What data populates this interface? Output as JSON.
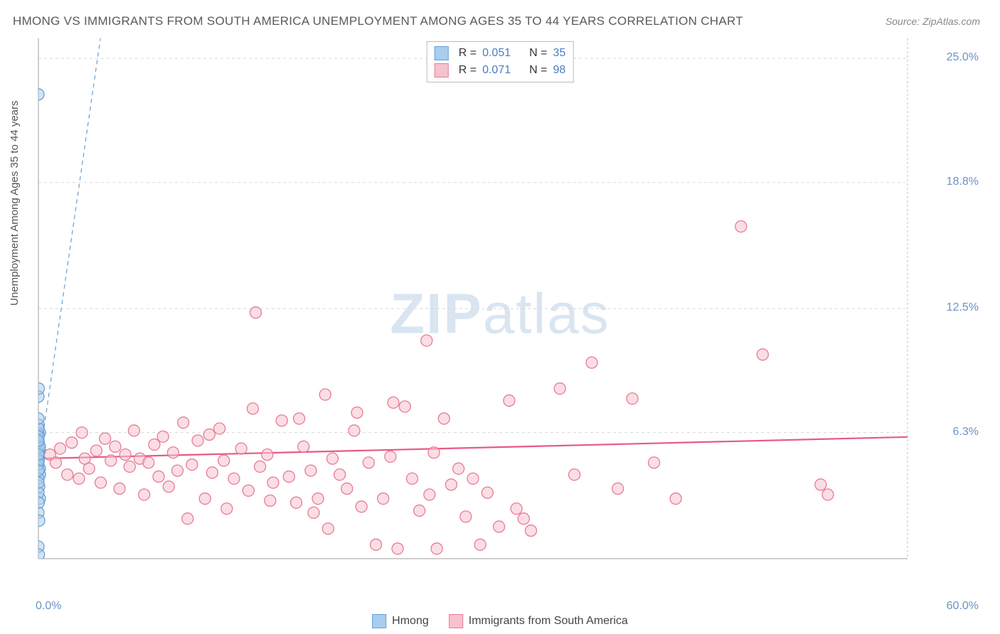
{
  "title": "HMONG VS IMMIGRANTS FROM SOUTH AMERICA UNEMPLOYMENT AMONG AGES 35 TO 44 YEARS CORRELATION CHART",
  "source": "Source: ZipAtlas.com",
  "ylabel": "Unemployment Among Ages 35 to 44 years",
  "watermark_zip": "ZIP",
  "watermark_atlas": "atlas",
  "xlim": [
    0,
    60
  ],
  "ylim": [
    0,
    26
  ],
  "x_min_label": "0.0%",
  "x_max_label": "60.0%",
  "y_ticks": [
    {
      "value": 6.3,
      "label": "6.3%"
    },
    {
      "value": 12.5,
      "label": "12.5%"
    },
    {
      "value": 18.8,
      "label": "18.8%"
    },
    {
      "value": 25.0,
      "label": "25.0%"
    }
  ],
  "grid_color": "#d8d8d8",
  "axis_color": "#bfbfbf",
  "background_color": "#ffffff",
  "series": {
    "hmong": {
      "label": "Hmong",
      "label_r": "R =",
      "label_n": "N =",
      "r": "0.051",
      "n": "35",
      "color_fill": "#a9cdee",
      "color_stroke": "#6a9fd4",
      "fit_line": {
        "slope": 5.0,
        "intercept": 4.6,
        "dash": "6,5"
      },
      "points": [
        [
          0.0,
          4.8
        ],
        [
          0.0,
          5.1
        ],
        [
          0.1,
          5.4
        ],
        [
          0.1,
          4.2
        ],
        [
          0.05,
          3.6
        ],
        [
          0.1,
          3.0
        ],
        [
          0.0,
          6.0
        ],
        [
          0.1,
          6.3
        ],
        [
          0.0,
          6.7
        ],
        [
          0.0,
          6.2
        ],
        [
          0.02,
          5.8
        ],
        [
          0.0,
          5.0
        ],
        [
          0.1,
          4.5
        ],
        [
          0.0,
          2.3
        ],
        [
          0.05,
          1.9
        ],
        [
          0.0,
          0.6
        ],
        [
          0.03,
          0.2
        ],
        [
          0.0,
          8.1
        ],
        [
          0.02,
          8.5
        ],
        [
          0.0,
          23.2
        ],
        [
          0.05,
          5.5
        ],
        [
          0.0,
          4.0
        ],
        [
          0.0,
          3.3
        ],
        [
          0.02,
          2.8
        ],
        [
          0.0,
          6.5
        ],
        [
          0.0,
          7.0
        ],
        [
          0.0,
          5.3
        ],
        [
          0.0,
          4.7
        ],
        [
          0.1,
          5.6
        ],
        [
          0.0,
          3.8
        ],
        [
          0.02,
          4.9
        ],
        [
          0.0,
          5.2
        ],
        [
          0.0,
          6.1
        ],
        [
          0.0,
          5.9
        ],
        [
          0.0,
          4.4
        ]
      ]
    },
    "south_america": {
      "label": "Immigrants from South America",
      "label_r": "R =",
      "label_n": "N =",
      "r": "0.071",
      "n": "98",
      "color_fill": "#f6c2cd",
      "color_stroke": "#e87b96",
      "fit_line": {
        "slope": 0.018,
        "intercept": 5.0,
        "dash": "none"
      },
      "points": [
        [
          0.8,
          5.2
        ],
        [
          1.2,
          4.8
        ],
        [
          1.5,
          5.5
        ],
        [
          2.0,
          4.2
        ],
        [
          2.3,
          5.8
        ],
        [
          2.8,
          4.0
        ],
        [
          3.0,
          6.3
        ],
        [
          3.2,
          5.0
        ],
        [
          3.5,
          4.5
        ],
        [
          4.0,
          5.4
        ],
        [
          4.3,
          3.8
        ],
        [
          4.6,
          6.0
        ],
        [
          5.0,
          4.9
        ],
        [
          5.3,
          5.6
        ],
        [
          5.6,
          3.5
        ],
        [
          6.0,
          5.2
        ],
        [
          6.3,
          4.6
        ],
        [
          6.6,
          6.4
        ],
        [
          7.0,
          5.0
        ],
        [
          7.3,
          3.2
        ],
        [
          7.6,
          4.8
        ],
        [
          8.0,
          5.7
        ],
        [
          8.3,
          4.1
        ],
        [
          8.6,
          6.1
        ],
        [
          9.0,
          3.6
        ],
        [
          9.3,
          5.3
        ],
        [
          9.6,
          4.4
        ],
        [
          10.0,
          6.8
        ],
        [
          10.3,
          2.0
        ],
        [
          10.6,
          4.7
        ],
        [
          11.0,
          5.9
        ],
        [
          11.5,
          3.0
        ],
        [
          12.0,
          4.3
        ],
        [
          12.5,
          6.5
        ],
        [
          13.0,
          2.5
        ],
        [
          13.5,
          4.0
        ],
        [
          14.0,
          5.5
        ],
        [
          14.5,
          3.4
        ],
        [
          15.0,
          12.3
        ],
        [
          15.3,
          4.6
        ],
        [
          15.8,
          5.2
        ],
        [
          16.2,
          3.8
        ],
        [
          16.8,
          6.9
        ],
        [
          17.3,
          4.1
        ],
        [
          17.8,
          2.8
        ],
        [
          18.3,
          5.6
        ],
        [
          18.8,
          4.4
        ],
        [
          19.3,
          3.0
        ],
        [
          19.8,
          8.2
        ],
        [
          20.3,
          5.0
        ],
        [
          20.8,
          4.2
        ],
        [
          21.3,
          3.5
        ],
        [
          21.8,
          6.4
        ],
        [
          22.3,
          2.6
        ],
        [
          22.8,
          4.8
        ],
        [
          23.3,
          0.7
        ],
        [
          23.8,
          3.0
        ],
        [
          24.3,
          5.1
        ],
        [
          24.8,
          0.5
        ],
        [
          25.3,
          7.6
        ],
        [
          25.8,
          4.0
        ],
        [
          26.3,
          2.4
        ],
        [
          26.8,
          10.9
        ],
        [
          27.3,
          5.3
        ],
        [
          27.5,
          0.5
        ],
        [
          28.0,
          7.0
        ],
        [
          28.5,
          3.7
        ],
        [
          29.0,
          4.5
        ],
        [
          29.5,
          2.1
        ],
        [
          30.0,
          4.0
        ],
        [
          30.5,
          0.7
        ],
        [
          31.0,
          3.3
        ],
        [
          31.8,
          1.6
        ],
        [
          32.5,
          7.9
        ],
        [
          33.0,
          2.5
        ],
        [
          33.5,
          2.0
        ],
        [
          34.0,
          1.4
        ],
        [
          36.0,
          8.5
        ],
        [
          37.0,
          4.2
        ],
        [
          38.2,
          9.8
        ],
        [
          40.0,
          3.5
        ],
        [
          41.0,
          8.0
        ],
        [
          42.5,
          4.8
        ],
        [
          44.0,
          3.0
        ],
        [
          48.5,
          16.6
        ],
        [
          50.0,
          10.2
        ],
        [
          54.0,
          3.7
        ],
        [
          54.5,
          3.2
        ],
        [
          12.8,
          4.9
        ],
        [
          14.8,
          7.5
        ],
        [
          18.0,
          7.0
        ],
        [
          22.0,
          7.3
        ],
        [
          24.5,
          7.8
        ],
        [
          19.0,
          2.3
        ],
        [
          20.0,
          1.5
        ],
        [
          27.0,
          3.2
        ],
        [
          16.0,
          2.9
        ],
        [
          11.8,
          6.2
        ]
      ]
    }
  }
}
